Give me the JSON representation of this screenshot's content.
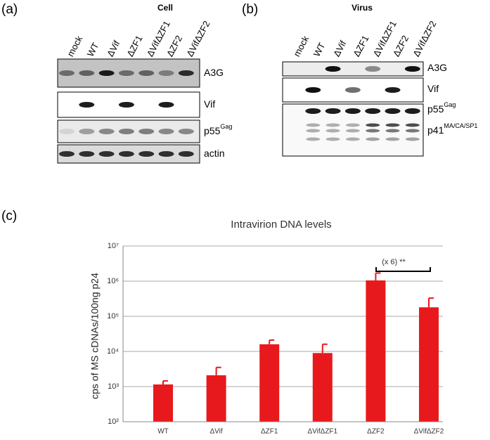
{
  "panels": {
    "a": {
      "label": "(a)",
      "title": "Cell",
      "lanes": [
        "mock",
        "WT",
        "ΔVif",
        "ΔZF1",
        "ΔVifΔZF1",
        "ΔZF2",
        "ΔVifΔZF2"
      ],
      "bands": [
        {
          "text": "A3G"
        },
        {
          "text": "Vif"
        },
        {
          "text": "p55",
          "sup": "Gag"
        },
        {
          "text": "actin"
        }
      ]
    },
    "b": {
      "label": "(b)",
      "title": "Virus",
      "lanes": [
        "mock",
        "WT",
        "ΔVif",
        "ΔZF1",
        "ΔVifΔZF1",
        "ΔZF2",
        "ΔVifΔZF2"
      ],
      "bands": [
        {
          "text": "A3G"
        },
        {
          "text": "Vif"
        },
        {
          "text": "p55",
          "sup": "Gag"
        },
        {
          "text": "p41",
          "sup": "MA/CA/SP1"
        }
      ]
    },
    "c": {
      "label": "(c)"
    }
  },
  "chart_data": {
    "type": "bar",
    "title": "Intravirion DNA levels",
    "y_label": "cps of MS cDNAs/100ng p24",
    "categories": [
      "WT",
      "ΔVif",
      "ΔZF1",
      "ΔVifΔZF1",
      "ΔZF2",
      "ΔVifΔZF2"
    ],
    "values": [
      1150,
      2100,
      16000,
      9000,
      1050000,
      180000
    ],
    "errors": [
      300,
      1400,
      5000,
      7000,
      650000,
      150000
    ],
    "color": "#e8191c",
    "log_scale": true,
    "grid": true,
    "ylim": [
      100,
      10000000
    ],
    "yticks": [
      {
        "value": 100,
        "label": "10²"
      },
      {
        "value": 1000,
        "label": "10³"
      },
      {
        "value": 10000,
        "label": "10⁴"
      },
      {
        "value": 100000,
        "label": "10⁵"
      },
      {
        "value": 1000000,
        "label": "10⁶"
      },
      {
        "value": 10000000,
        "label": "10⁷"
      }
    ],
    "annotation": "(x 6) **"
  }
}
